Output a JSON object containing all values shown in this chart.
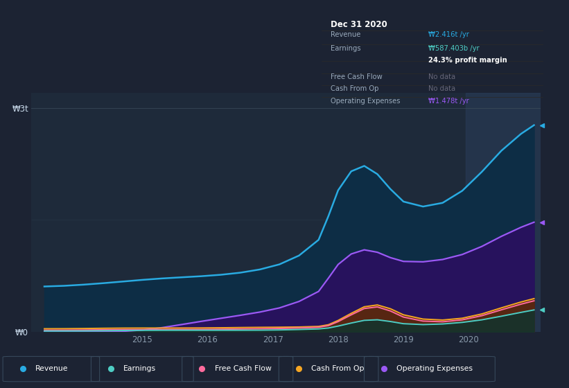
{
  "background_color": "#1c2333",
  "plot_bg_color": "#1e2a3a",
  "ytick_labels": [
    "₩0",
    "₩3t"
  ],
  "xtick_labels": [
    "2015",
    "2016",
    "2017",
    "2018",
    "2019",
    "2020"
  ],
  "xtick_values": [
    2015,
    2016,
    2017,
    2018,
    2019,
    2020
  ],
  "x": [
    2013.5,
    2013.8,
    2014.1,
    2014.4,
    2014.7,
    2015.0,
    2015.3,
    2015.6,
    2015.9,
    2016.2,
    2016.5,
    2016.8,
    2017.1,
    2017.4,
    2017.7,
    2017.85,
    2018.0,
    2018.2,
    2018.4,
    2018.6,
    2018.8,
    2019.0,
    2019.3,
    2019.6,
    2019.9,
    2020.2,
    2020.5,
    2020.8,
    2021.0
  ],
  "revenue": [
    0.6,
    0.61,
    0.63,
    0.65,
    0.67,
    0.7,
    0.72,
    0.73,
    0.74,
    0.76,
    0.78,
    0.82,
    0.88,
    0.96,
    1.1,
    1.5,
    2.0,
    2.3,
    2.4,
    2.2,
    1.85,
    1.65,
    1.6,
    1.65,
    1.8,
    2.1,
    2.5,
    2.75,
    2.85
  ],
  "operating_expenses": [
    0.0,
    0.0,
    0.0,
    0.0,
    0.0,
    0.0,
    0.05,
    0.1,
    0.14,
    0.18,
    0.22,
    0.26,
    0.3,
    0.36,
    0.5,
    0.7,
    0.95,
    1.1,
    1.2,
    1.1,
    0.95,
    0.9,
    0.92,
    0.95,
    1.0,
    1.1,
    1.3,
    1.45,
    1.52
  ],
  "free_cash_flow": [
    0.02,
    0.02,
    0.02,
    0.03,
    0.03,
    0.03,
    0.03,
    0.03,
    0.03,
    0.03,
    0.04,
    0.04,
    0.04,
    0.05,
    0.06,
    0.06,
    0.08,
    0.22,
    0.38,
    0.42,
    0.3,
    0.15,
    0.1,
    0.12,
    0.14,
    0.18,
    0.3,
    0.4,
    0.45
  ],
  "cash_from_op": [
    0.04,
    0.04,
    0.04,
    0.05,
    0.05,
    0.05,
    0.05,
    0.05,
    0.05,
    0.05,
    0.06,
    0.06,
    0.06,
    0.06,
    0.07,
    0.07,
    0.09,
    0.25,
    0.4,
    0.44,
    0.34,
    0.18,
    0.13,
    0.14,
    0.16,
    0.2,
    0.33,
    0.43,
    0.48
  ],
  "earnings": [
    0.01,
    0.01,
    0.01,
    0.01,
    0.02,
    0.02,
    0.02,
    0.02,
    0.02,
    0.02,
    0.02,
    0.02,
    0.02,
    0.03,
    0.04,
    0.04,
    0.05,
    0.12,
    0.18,
    0.2,
    0.14,
    0.08,
    0.08,
    0.1,
    0.12,
    0.14,
    0.2,
    0.28,
    0.32
  ],
  "revenue_color": "#29abe2",
  "earnings_color": "#4ecdc4",
  "free_cash_flow_color": "#ff6b9d",
  "cash_from_op_color": "#f5a623",
  "operating_expenses_color": "#9b59f5",
  "legend_items": [
    {
      "label": "Revenue",
      "color": "#29abe2"
    },
    {
      "label": "Earnings",
      "color": "#4ecdc4"
    },
    {
      "label": "Free Cash Flow",
      "color": "#ff6b9d"
    },
    {
      "label": "Cash From Op",
      "color": "#f5a623"
    },
    {
      "label": "Operating Expenses",
      "color": "#9b59f5"
    }
  ],
  "highlight_x_start": 2019.95,
  "highlight_x_end": 2021.1,
  "xlim": [
    2013.3,
    2021.1
  ],
  "ylim": [
    0,
    3.2
  ],
  "y3t_line": 3.0,
  "y1p5_line": 1.5
}
